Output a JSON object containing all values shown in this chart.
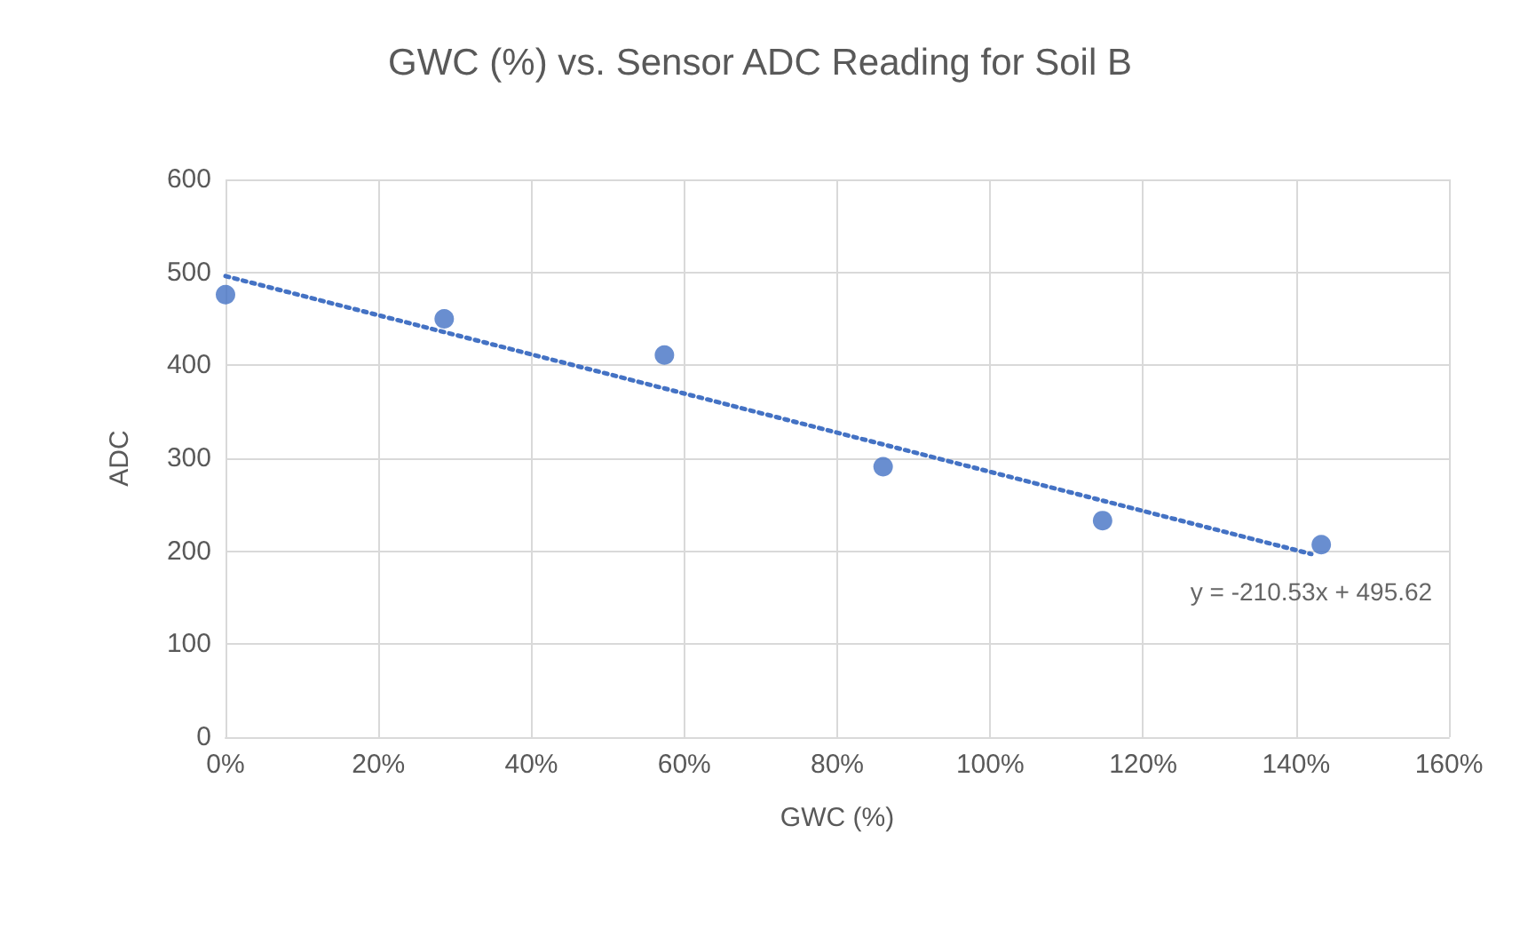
{
  "chart_data": {
    "type": "scatter",
    "title": "GWC (%) vs. Sensor ADC Reading for Soil B",
    "xlabel": "GWC (%)",
    "ylabel": "ADC",
    "series": [
      {
        "color": "#4472c4",
        "x": [
          0,
          0.286,
          0.574,
          0.86,
          1.147,
          1.433
        ],
        "values": [
          476,
          450,
          411,
          291,
          233,
          207
        ],
        "marker": "circle"
      },
      {
        "type": "line",
        "color": "#4472c4",
        "x": [
          0,
          1.42
        ],
        "values": [
          496,
          197
        ],
        "line_style": "dotted",
        "marker": "none"
      }
    ],
    "annotations": [
      {
        "text": "y = -210.53x + 495.62",
        "x": 1.42,
        "y": 197
      }
    ],
    "xlim": [
      0,
      1.6
    ],
    "xticks": [
      {
        "value": 0,
        "label": "0%"
      },
      {
        "value": 0.2,
        "label": "20%"
      },
      {
        "value": 0.4,
        "label": "40%"
      },
      {
        "value": 0.6,
        "label": "60%"
      },
      {
        "value": 0.8,
        "label": "80%"
      },
      {
        "value": 1,
        "label": "100%"
      },
      {
        "value": 1.2,
        "label": "120%"
      },
      {
        "value": 1.4,
        "label": "140%"
      },
      {
        "value": 1.6,
        "label": "160%"
      }
    ],
    "ylim": [
      0,
      600
    ],
    "yticks": [
      0,
      100,
      200,
      300,
      400,
      500,
      600
    ],
    "grid": true
  }
}
